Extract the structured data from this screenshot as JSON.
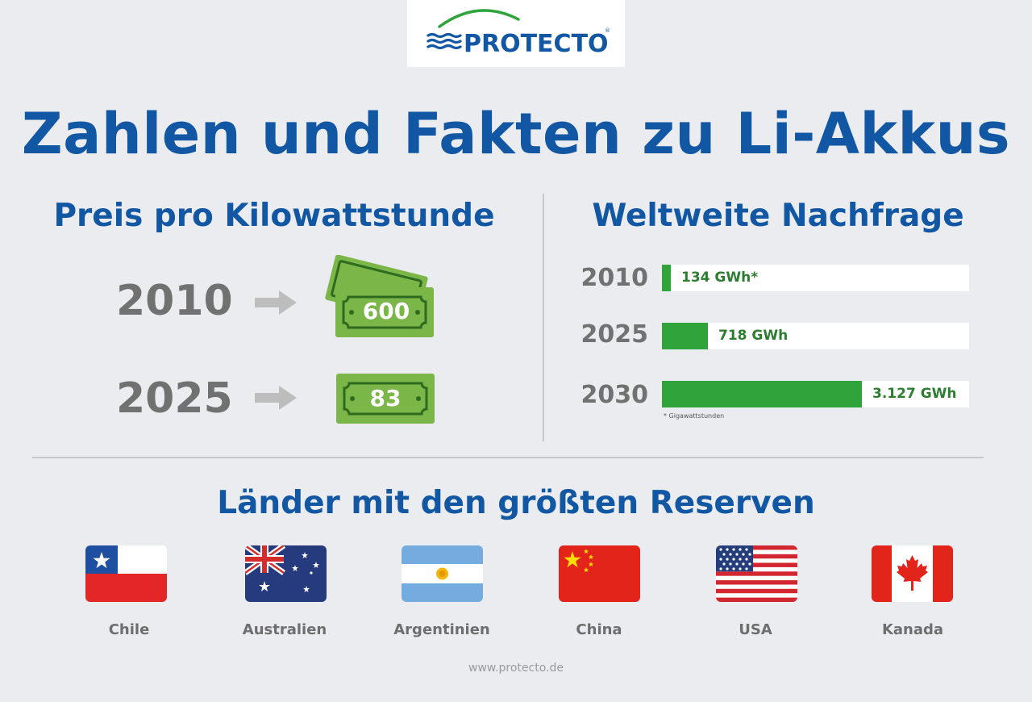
{
  "logo": {
    "text": "PROTECTO",
    "registered": "®"
  },
  "title": "Zahlen und Fakten zu Li-Akkus",
  "price": {
    "heading": "Preis pro Kilowattstunde",
    "rows": [
      {
        "year": "2010",
        "value": "600"
      },
      {
        "year": "2025",
        "value": "83"
      }
    ]
  },
  "demand": {
    "heading": "Weltweite Nachfrage",
    "rows": [
      {
        "year": "2010",
        "label": "134 GWh*",
        "value_gwh": 134
      },
      {
        "year": "2025",
        "label": "718 GWh",
        "value_gwh": 718
      },
      {
        "year": "2030",
        "label": "3.127 GWh",
        "value_gwh": 3127
      }
    ],
    "footnote": "* Gigawattstunden"
  },
  "reserves": {
    "heading": "Länder mit den größten Reserven",
    "countries": [
      {
        "name": "Chile",
        "flag": "chile-flag-icon"
      },
      {
        "name": "Australien",
        "flag": "australia-flag-icon"
      },
      {
        "name": "Argentinien",
        "flag": "argentina-flag-icon"
      },
      {
        "name": "China",
        "flag": "china-flag-icon"
      },
      {
        "name": "USA",
        "flag": "usa-flag-icon"
      },
      {
        "name": "Kanada",
        "flag": "canada-flag-icon"
      }
    ]
  },
  "website": "www.protecto.de",
  "colors": {
    "brand_blue": "#1257a3",
    "bar_green": "#2ea43b",
    "bill_green": "#7ab648",
    "background": "#ebecef"
  }
}
